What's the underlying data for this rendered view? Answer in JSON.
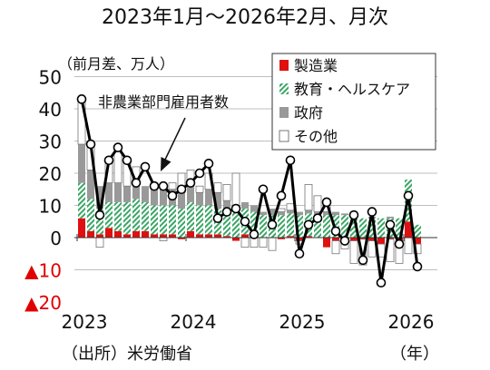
{
  "chart_data": {
    "type": "bar",
    "title": "2023年1月～2026年2月、月次",
    "unit_label": "（前月差、万人）",
    "source": "（出所）米労働省",
    "x_unit": "（年）",
    "annotation": "非農業部門雇用者数",
    "ylim": [
      -20,
      50
    ],
    "y_ticks": [
      50,
      40,
      30,
      20,
      10,
      0,
      -10,
      -20
    ],
    "y_tick_labels": [
      "50",
      "40",
      "30",
      "20",
      "10",
      "0",
      "▲10",
      "▲20"
    ],
    "x_tick_labels": [
      "2023",
      "2024",
      "2025",
      "2026"
    ],
    "gridlines": true,
    "legend_position": "top-right",
    "months": [
      "2023-01",
      "2023-02",
      "2023-03",
      "2023-04",
      "2023-05",
      "2023-06",
      "2023-07",
      "2023-08",
      "2023-09",
      "2023-10",
      "2023-11",
      "2023-12",
      "2024-01",
      "2024-02",
      "2024-03",
      "2024-04",
      "2024-05",
      "2024-06",
      "2024-07",
      "2024-08",
      "2024-09",
      "2024-10",
      "2024-11",
      "2024-12",
      "2025-01",
      "2025-02",
      "2025-03",
      "2025-04",
      "2025-05",
      "2025-06",
      "2025-07",
      "2025-08",
      "2025-09",
      "2025-10",
      "2025-11",
      "2025-12",
      "2026-01",
      "2026-02"
    ],
    "series": [
      {
        "name": "製造業",
        "kind": "bar",
        "color": "#e01010",
        "values": [
          6,
          2,
          1,
          3,
          2,
          1,
          2,
          2,
          1,
          1,
          1,
          -0.5,
          2,
          1,
          1,
          1,
          0.5,
          -1,
          1,
          0,
          0,
          0,
          -0.5,
          0.5,
          -1,
          0.5,
          0,
          -3,
          -1,
          -0.5,
          -1,
          -0.5,
          -1,
          -2,
          -0.5,
          -1,
          5,
          -2
        ]
      },
      {
        "name": "教育・ヘルスケア",
        "kind": "bar",
        "color": "#3aa565",
        "values": [
          11,
          10,
          8,
          8,
          9,
          10,
          10,
          9,
          9,
          9,
          9,
          9,
          9,
          9,
          9,
          8,
          8,
          8,
          8,
          8,
          7,
          7,
          7,
          7,
          7,
          7,
          7,
          7,
          7,
          7,
          6,
          6,
          6,
          6,
          6,
          6,
          13,
          4
        ]
      },
      {
        "name": "政府",
        "kind": "bar",
        "color": "#999999",
        "values": [
          12,
          9,
          7,
          6,
          6,
          5,
          5,
          5,
          5,
          5,
          5,
          5,
          5,
          4,
          5,
          5,
          3,
          2,
          2,
          2,
          1,
          2,
          1,
          1,
          1,
          1,
          1,
          1,
          1,
          0.5,
          1,
          0,
          0.5,
          0,
          0.5,
          0,
          0,
          0
        ]
      },
      {
        "name": "その他",
        "kind": "bar",
        "color": "#ffffff",
        "values": [
          14,
          8,
          -3,
          7,
          11,
          8,
          5,
          0,
          2,
          -1,
          2,
          6,
          5,
          2,
          5,
          3,
          5,
          10,
          -3,
          -3,
          -3,
          -4,
          1,
          2,
          -1,
          8,
          5,
          2,
          -4,
          -3,
          -7,
          -8,
          -5,
          -4,
          -7,
          -7,
          -5,
          -3
        ]
      },
      {
        "name": "非農業部門雇用者数",
        "kind": "line",
        "color": "#000000",
        "values": [
          43,
          29,
          7,
          24,
          28,
          24,
          17,
          22,
          16,
          16,
          13,
          15,
          17,
          20,
          23,
          6,
          8,
          9,
          5,
          1,
          15,
          4,
          13,
          24,
          -5,
          4,
          6,
          11,
          2,
          -1,
          7,
          -7,
          8,
          -14,
          4,
          -2,
          13,
          -9
        ]
      }
    ],
    "legend_labels": [
      "製造業",
      "教育・ヘルスケア",
      "政府",
      "その他"
    ]
  }
}
